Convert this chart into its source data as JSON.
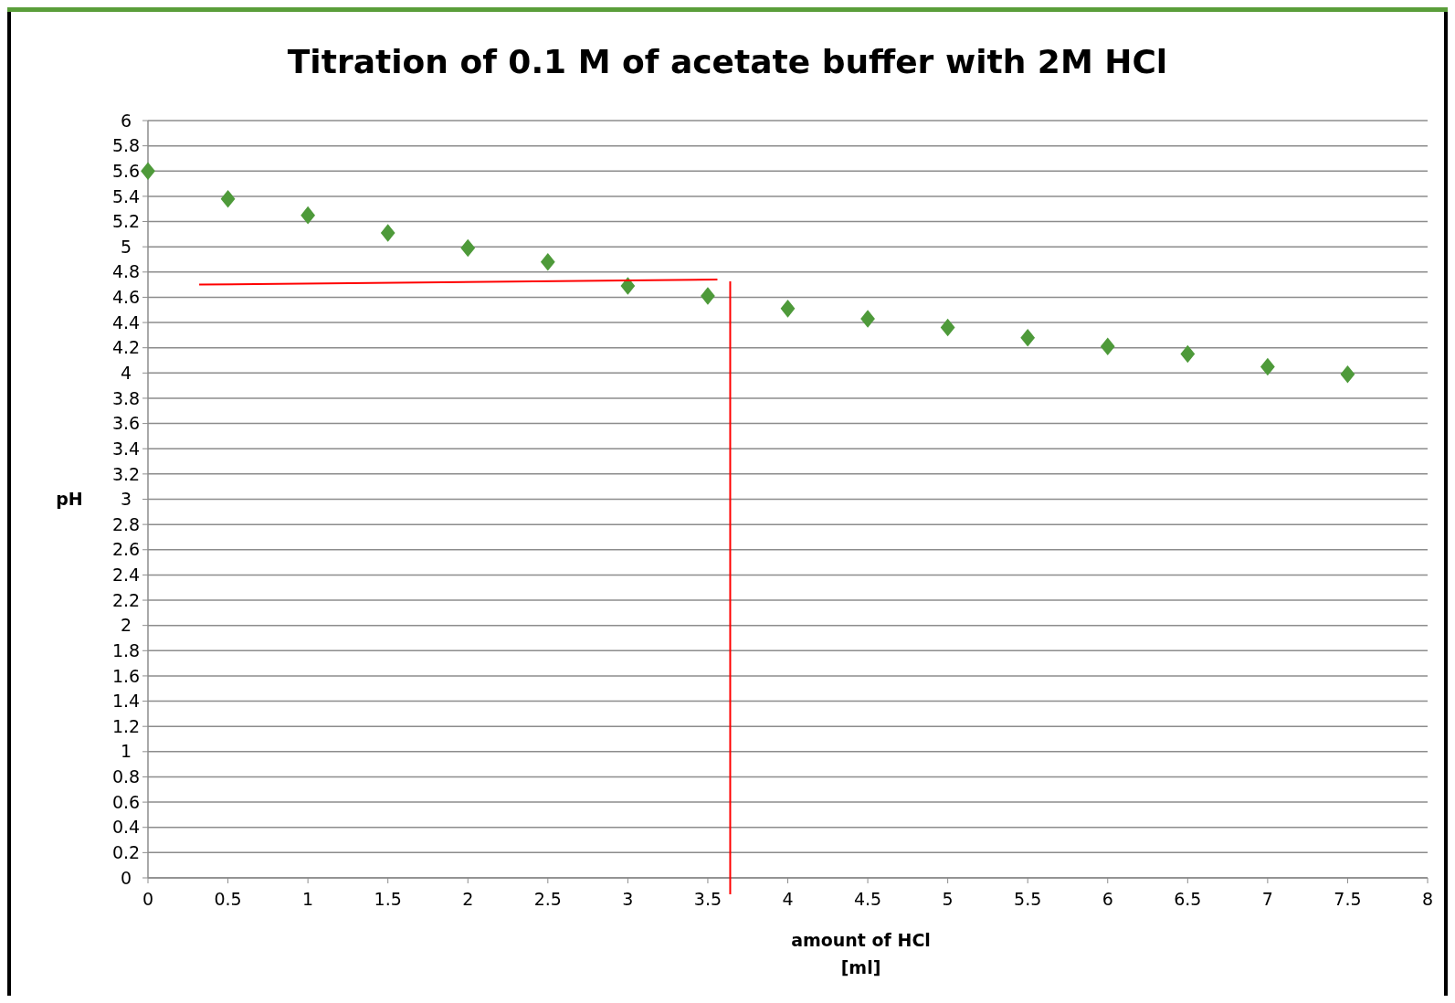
{
  "chart_data": {
    "type": "scatter",
    "title": "Titration of 0.1 M of acetate buffer with 2M HCl",
    "xlabel": "amount of HCl [ml]",
    "ylabel": "pH",
    "x": [
      0,
      0.5,
      1,
      1.5,
      2,
      2.5,
      3,
      3.5,
      4,
      4.5,
      5,
      5.5,
      6,
      6.5,
      7,
      7.5
    ],
    "series": [
      {
        "color": "#4e9a3a",
        "marker": "diamond",
        "values": [
          5.6,
          5.38,
          5.25,
          5.11,
          4.99,
          4.88,
          4.69,
          4.61,
          4.51,
          4.43,
          4.36,
          4.28,
          4.21,
          4.15,
          4.05,
          3.99
        ]
      },
      {
        "type": "line",
        "color": "#ff0000",
        "marker": "none",
        "x": [
          0.32,
          3.56
        ],
        "values": [
          4.7,
          4.74
        ]
      }
    ],
    "ref_lines": [
      {
        "axis": "x",
        "value": 3.64,
        "color": "#ff0000"
      }
    ],
    "xlim": [
      0,
      8
    ],
    "xticks": [
      0,
      0.5,
      1,
      1.5,
      2,
      2.5,
      3,
      3.5,
      4,
      4.5,
      5,
      5.5,
      6,
      6.5,
      7,
      7.5,
      8
    ],
    "ylim": [
      0,
      6
    ],
    "yticks": [
      0,
      0.2,
      0.4,
      0.6,
      0.8,
      1,
      1.2,
      1.4,
      1.6,
      1.8,
      2,
      2.2,
      2.4,
      2.6,
      2.8,
      3,
      3.2,
      3.4,
      3.6,
      3.8,
      4,
      4.2,
      4.4,
      4.6,
      4.8,
      5,
      5.2,
      5.4,
      5.6,
      5.8,
      6
    ],
    "grid": "y"
  }
}
